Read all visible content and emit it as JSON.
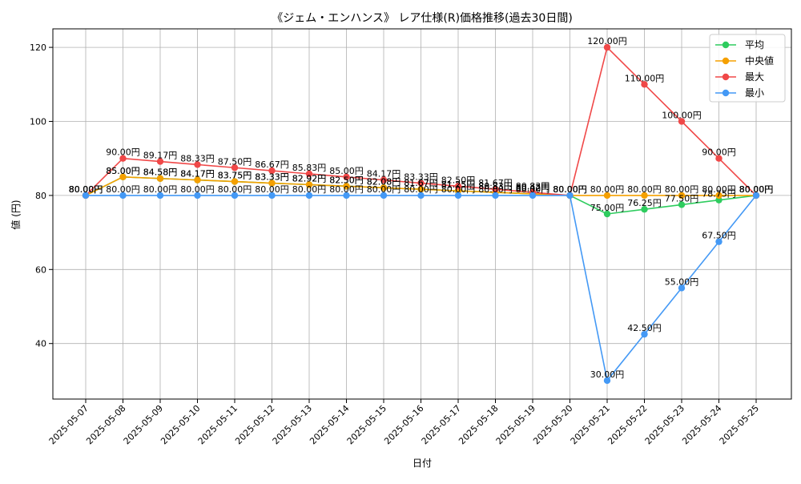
{
  "chart_data": {
    "type": "line",
    "title": "《ジェム・エンハンス》 レア仕様(R)価格推移(過去30日間)",
    "xlabel": "日付",
    "ylabel": "値 (円)",
    "ylim": [
      25,
      125
    ],
    "yticks": [
      40,
      60,
      80,
      100,
      120
    ],
    "grid": true,
    "legend_position": "top-right",
    "value_suffix": "円",
    "categories": [
      "2025-05-07",
      "2025-05-08",
      "2025-05-09",
      "2025-05-10",
      "2025-05-11",
      "2025-05-12",
      "2025-05-13",
      "2025-05-14",
      "2025-05-15",
      "2025-05-16",
      "2025-05-17",
      "2025-05-18",
      "2025-05-19",
      "2025-05-20",
      "2025-05-21",
      "2025-05-22",
      "2025-05-23",
      "2025-05-24",
      "2025-05-25"
    ],
    "series": [
      {
        "name": "平均",
        "color": "#2ecc5e",
        "values": [
          80,
          85,
          84.58,
          84.17,
          83.75,
          83.33,
          82.92,
          82.5,
          82.08,
          81.67,
          81.25,
          80.83,
          80.42,
          80,
          75,
          76.25,
          77.5,
          78.75,
          80
        ]
      },
      {
        "name": "中央値",
        "color": "#f5a000",
        "values": [
          80,
          85,
          84.58,
          84.17,
          83.75,
          83.33,
          82.92,
          82.5,
          82.08,
          81.67,
          81.25,
          80.83,
          80.42,
          80,
          80,
          80,
          80,
          80,
          80
        ]
      },
      {
        "name": "最大",
        "color": "#f04848",
        "values": [
          80,
          90,
          89.17,
          88.33,
          87.5,
          86.67,
          85.83,
          85,
          84.17,
          83.33,
          82.5,
          81.67,
          80.83,
          80,
          120,
          110,
          100,
          90,
          80
        ]
      },
      {
        "name": "最小",
        "color": "#4499f5",
        "values": [
          80,
          80,
          80,
          80,
          80,
          80,
          80,
          80,
          80,
          80,
          80,
          80,
          80,
          80,
          30,
          42.5,
          55,
          67.5,
          80
        ]
      }
    ]
  }
}
